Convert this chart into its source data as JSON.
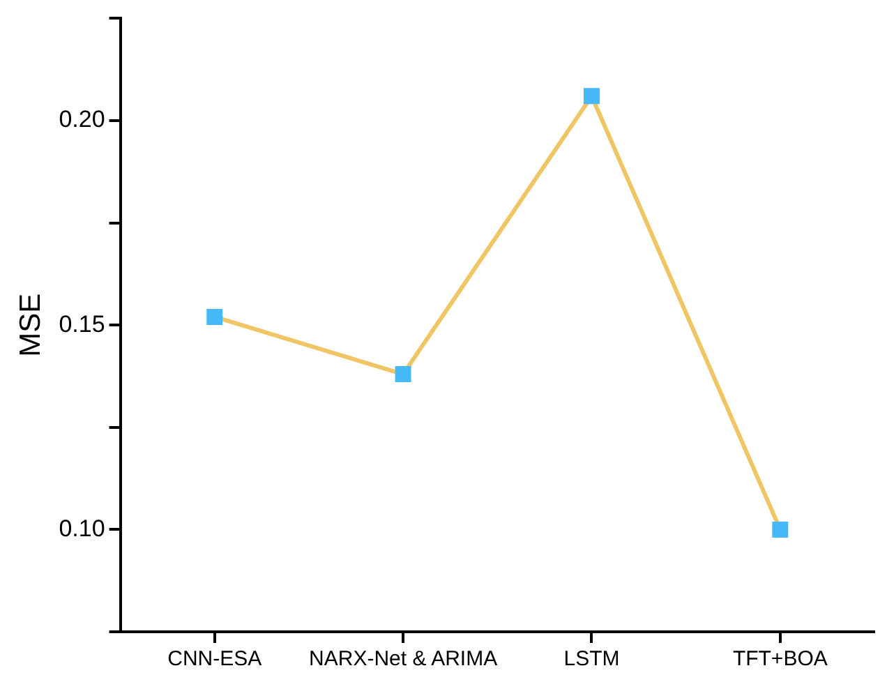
{
  "chart_data": {
    "type": "line",
    "ylabel": "MSE",
    "categories": [
      "CNN-ESA",
      "NARX-Net & ARIMA",
      "LSTM",
      "TFT+BOA"
    ],
    "series": [
      {
        "color": "#f0c566",
        "colors": [
          "#45b9f7",
          "#45b9f7",
          "#45b9f7",
          "#45b9f7"
        ],
        "values": [
          0.152,
          0.138,
          0.206,
          0.1
        ]
      }
    ],
    "ylim": [
      0.075,
      0.225
    ],
    "yticks": [
      {
        "value": 0.075,
        "label": null
      },
      {
        "value": 0.1,
        "label": "0.10"
      },
      {
        "value": 0.125,
        "label": null
      },
      0.15,
      {
        "value": 0.175,
        "label": null
      },
      {
        "value": 0.2,
        "label": "0.20"
      },
      {
        "value": 0.225,
        "label": null
      }
    ],
    "grid": false,
    "legend": false,
    "marker": "square",
    "line_style": "solid"
  }
}
